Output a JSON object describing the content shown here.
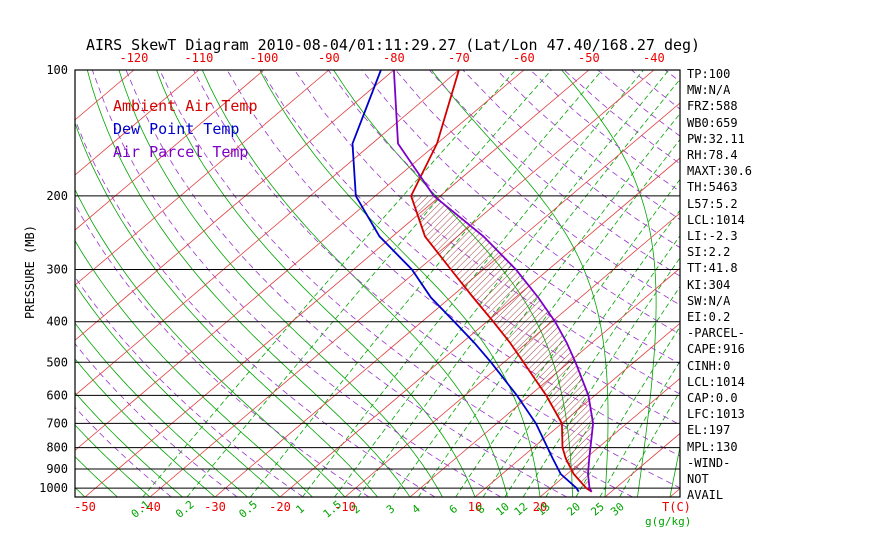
{
  "colors": {
    "isotherm": "#e04040",
    "axis_red": "#ee0000",
    "isobar": "#000000",
    "moist_adiabat": "#00a400",
    "mixing_ratio": "#00a400",
    "dry_adiabat": "#9933cc",
    "hatch": "#993333",
    "text": "#000000"
  },
  "legend": [
    {
      "label": "Ambient Air Temp",
      "color": "#d40000"
    },
    {
      "label": "Dew Point Temp",
      "color": "#0000cc"
    },
    {
      "label": "Air Parcel Temp",
      "color": "#7d00c8"
    }
  ],
  "stats": [
    "TP:100",
    "MW:N/A",
    "FRZ:588",
    "WB0:659",
    "PW:32.11",
    "RH:78.4",
    "MAXT:30.6",
    "TH:5463",
    "L57:5.2",
    "LCL:1014",
    "LI:-2.3",
    "SI:2.2",
    "TT:41.8",
    "KI:304",
    "SW:N/A",
    "EI:0.2",
    "-PARCEL-",
    "CAPE:916",
    "CINH:0",
    "LCL:1014",
    "CAP:0.0",
    "LFC:1013",
    "EL:197",
    "MPL:130",
    "-WIND-",
    "NOT",
    "AVAIL"
  ],
  "chart_data": {
    "type": "line",
    "title": "AIRS SkewT Diagram 2010-08-04/01:11:29.27 (Lat/Lon 47.40/168.27 deg)",
    "x_axis": {
      "label": "T(C)",
      "units": "degC",
      "top_ticks_at_100mb": [
        -120,
        -110,
        -100,
        -90,
        -80,
        -70,
        -60,
        -50,
        -40
      ],
      "bottom_ticks_at_1050mb": [
        -50,
        -40,
        -30,
        -20,
        -10,
        10,
        20
      ]
    },
    "y_axis": {
      "label": "PRESSURE (MB)",
      "scale": "log",
      "range": [
        100,
        1050
      ],
      "ticks": [
        100,
        200,
        300,
        400,
        500,
        600,
        700,
        800,
        900,
        1000
      ]
    },
    "mixing_ratio_axis_label": "g(g/kg)",
    "mixing_ratio_lines_g_per_kg": [
      0.1,
      0.2,
      0.5,
      1,
      1.5,
      2,
      3,
      4,
      6,
      8,
      10,
      12,
      15,
      20,
      25,
      30
    ],
    "isotherm_step_c": 10,
    "isotherm_range_c": [
      -120,
      50
    ],
    "dry_adiabat_theta_c_range": [
      -40,
      180,
      10
    ],
    "moist_adiabat_start_c_range": [
      -60,
      40,
      5
    ],
    "series": [
      {
        "name": "Ambient Air Temp",
        "color": "#d40000",
        "points_p_t": [
          [
            1020,
            27
          ],
          [
            1000,
            25.5
          ],
          [
            925,
            21
          ],
          [
            850,
            17
          ],
          [
            800,
            14.5
          ],
          [
            700,
            10
          ],
          [
            600,
            2.5
          ],
          [
            500,
            -7
          ],
          [
            450,
            -12.5
          ],
          [
            400,
            -19
          ],
          [
            350,
            -26.5
          ],
          [
            300,
            -35
          ],
          [
            250,
            -45
          ],
          [
            200,
            -54.5
          ],
          [
            150,
            -60
          ],
          [
            100,
            -70
          ]
        ]
      },
      {
        "name": "Dew Point Temp",
        "color": "#0000cc",
        "points_p_t": [
          [
            1020,
            25
          ],
          [
            1000,
            24
          ],
          [
            925,
            19
          ],
          [
            850,
            15
          ],
          [
            700,
            6
          ],
          [
            600,
            -2
          ],
          [
            500,
            -12
          ],
          [
            450,
            -18
          ],
          [
            400,
            -25
          ],
          [
            350,
            -33
          ],
          [
            300,
            -41
          ],
          [
            250,
            -52
          ],
          [
            200,
            -63
          ],
          [
            150,
            -73
          ],
          [
            100,
            -82
          ]
        ]
      },
      {
        "name": "Air Parcel Temp",
        "color": "#7d00c8",
        "points_p_t": [
          [
            1020,
            27
          ],
          [
            1000,
            26
          ],
          [
            925,
            23.2
          ],
          [
            850,
            20.6
          ],
          [
            700,
            14.8
          ],
          [
            600,
            9
          ],
          [
            500,
            1
          ],
          [
            450,
            -3.8
          ],
          [
            400,
            -9.5
          ],
          [
            350,
            -16.5
          ],
          [
            300,
            -25
          ],
          [
            250,
            -36
          ],
          [
            200,
            -51
          ],
          [
            150,
            -66
          ],
          [
            100,
            -80
          ]
        ]
      }
    ],
    "cape_hatch": {
      "between": [
        "Air Parcel Temp",
        "Ambient Air Temp"
      ],
      "pressure_range": [
        1013,
        197
      ]
    }
  }
}
